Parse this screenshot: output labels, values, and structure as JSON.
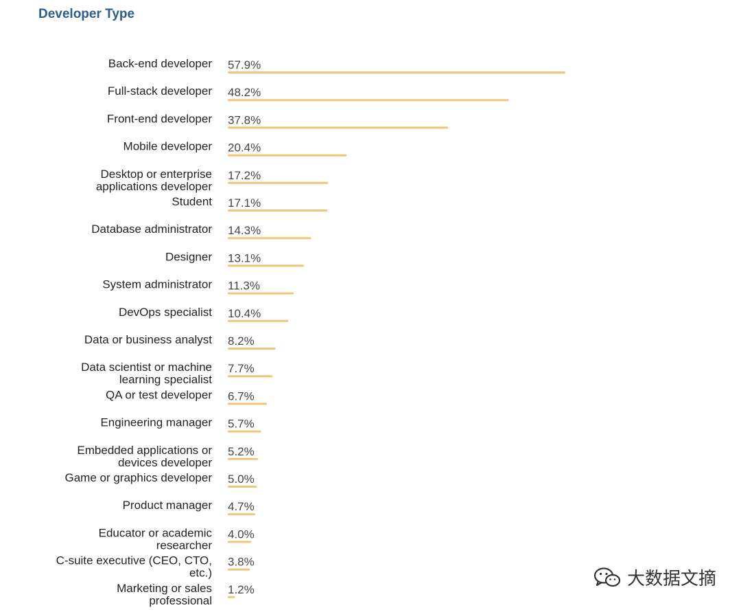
{
  "watermark": {
    "text": "大数据文摘",
    "icon": "wechat-icon"
  },
  "chart_data": {
    "type": "bar",
    "orientation": "horizontal",
    "title": "Developer Type",
    "bar_color": "#f0c77a",
    "title_color": "#2c5d8f",
    "categories": [
      "Back-end developer",
      "Full-stack developer",
      "Front-end developer",
      "Mobile developer",
      "Desktop or enterprise\napplications developer",
      "Student",
      "Database administrator",
      "Designer",
      "System administrator",
      "DevOps specialist",
      "Data or business analyst",
      "Data scientist or machine\nlearning specialist",
      "QA or test developer",
      "Engineering manager",
      "Embedded applications or\ndevices developer",
      "Game or graphics developer",
      "Product manager",
      "Educator or academic\nresearcher",
      "C-suite executive (CEO, CTO,\netc.)",
      "Marketing or sales\nprofessional"
    ],
    "values": [
      57.9,
      48.2,
      37.8,
      20.4,
      17.2,
      17.1,
      14.3,
      13.1,
      11.3,
      10.4,
      8.2,
      7.7,
      6.7,
      5.7,
      5.2,
      5.0,
      4.7,
      4.0,
      3.8,
      1.2
    ],
    "value_labels": [
      "57.9%",
      "48.2%",
      "37.8%",
      "20.4%",
      "17.2%",
      "17.1%",
      "14.3%",
      "13.1%",
      "11.3%",
      "10.4%",
      "8.2%",
      "7.7%",
      "6.7%",
      "5.7%",
      "5.2%",
      "5.0%",
      "4.7%",
      "4.0%",
      "3.8%",
      "1.2%"
    ]
  }
}
